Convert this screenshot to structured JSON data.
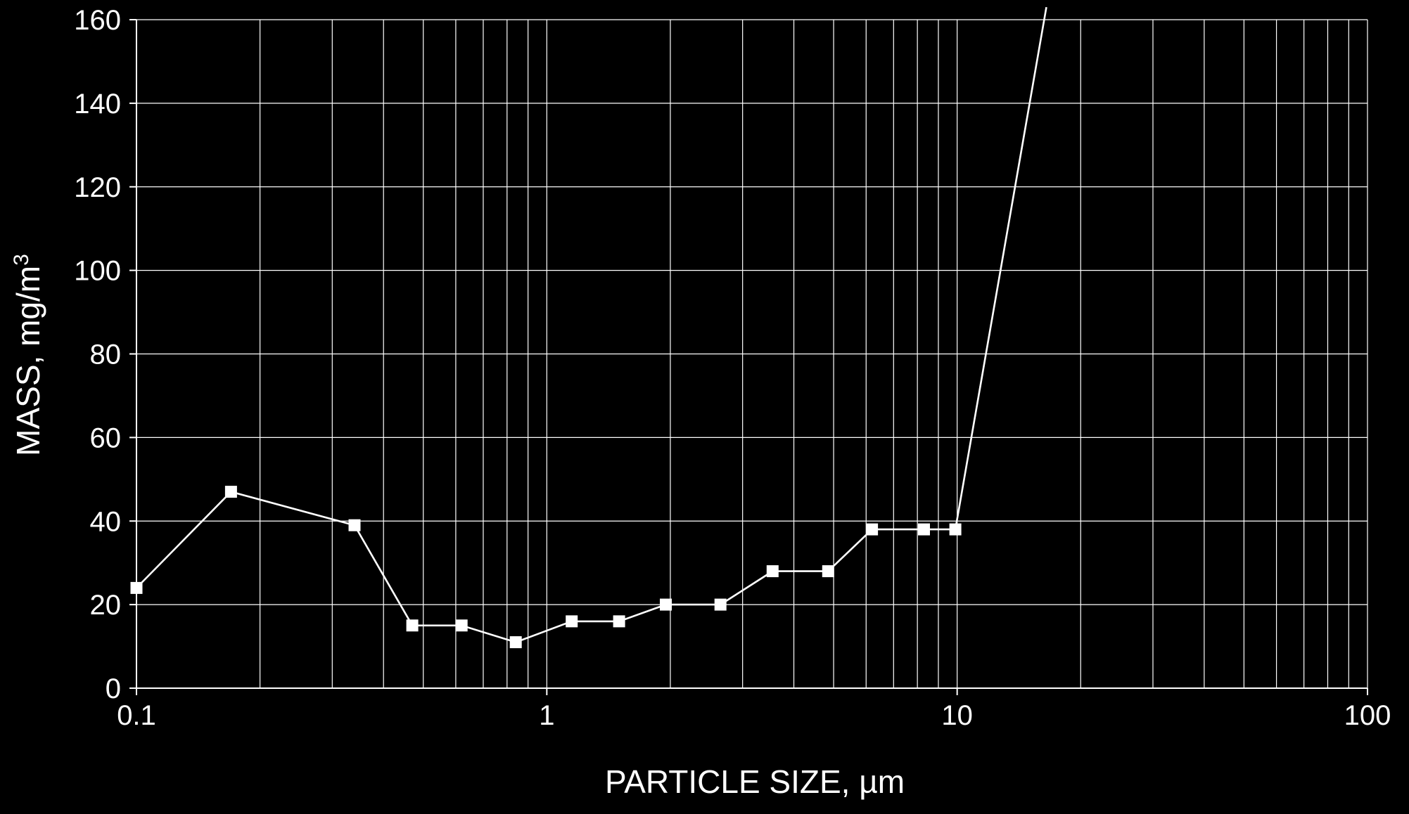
{
  "chart_data": {
    "type": "line",
    "xlabel": "PARTICLE SIZE, µm",
    "ylabel": "MASS, mg/m",
    "ylabel_superscript": "3",
    "x_scale": "log",
    "xlim": [
      0.1,
      100
    ],
    "ylim": [
      0,
      160
    ],
    "x_ticks": [
      0.1,
      1,
      10,
      100
    ],
    "x_tick_labels": [
      "0.1",
      "1",
      "10",
      "100"
    ],
    "y_ticks": [
      0,
      20,
      40,
      60,
      80,
      100,
      120,
      140,
      160
    ],
    "y_tick_labels": [
      "0",
      "20",
      "40",
      "60",
      "80",
      "100",
      "120",
      "140",
      "160"
    ],
    "grid": true,
    "colors": {
      "background": "#000000",
      "foreground": "#ffffff"
    },
    "series": [
      {
        "marker": "square",
        "x": [
          0.1,
          0.17,
          0.34,
          0.47,
          0.62,
          0.84,
          1.15,
          1.5,
          1.95,
          2.65,
          3.55,
          4.85,
          6.2,
          8.3,
          9.9
        ],
        "y": [
          24,
          47,
          39,
          15,
          15,
          11,
          16,
          16,
          20,
          20,
          28,
          28,
          38,
          38,
          38
        ]
      },
      {
        "marker": "none",
        "x": [
          9.9,
          16.5
        ],
        "y": [
          38,
          163
        ]
      }
    ]
  }
}
